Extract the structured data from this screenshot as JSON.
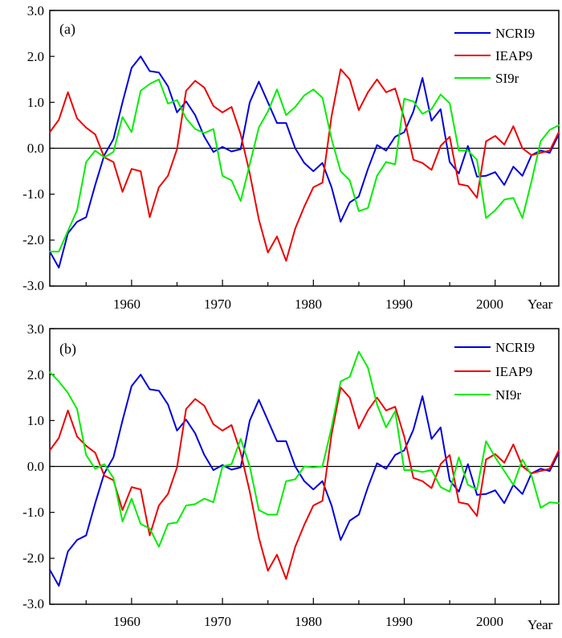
{
  "colors": {
    "NCRI9": "#0000dd",
    "IEAP9": "#ee0000",
    "SI9r": "#00ee00",
    "NI9r": "#00ee00",
    "axis": "#000000"
  },
  "chart_data": [
    {
      "type": "line",
      "panel_label": "(a)",
      "xlabel": "Year",
      "xlim": [
        1951,
        2007
      ],
      "ylim": [
        -3.0,
        3.0
      ],
      "x_ticks": [
        1960,
        1970,
        1980,
        1990,
        2000
      ],
      "x_tick_labels": [
        "1960",
        "1970",
        "1980",
        "1990",
        "2000"
      ],
      "y_ticks": [
        -3,
        -2,
        -1,
        0,
        1,
        2,
        3
      ],
      "y_tick_labels": [
        "-3.0",
        "-2.0",
        "-1.0",
        "0.0",
        "1.0",
        "2.0",
        "3.0"
      ],
      "zero_line": true,
      "legend_position": "top-right",
      "x_start": 1951,
      "series": [
        {
          "name": "NCRI9",
          "color": "#0000dd",
          "values": [
            -2.25,
            -2.6,
            -1.85,
            -1.6,
            -1.5,
            -0.8,
            -0.15,
            0.2,
            1.0,
            1.75,
            2.0,
            1.68,
            1.65,
            1.35,
            0.78,
            1.02,
            0.72,
            0.25,
            -0.08,
            0.03,
            -0.07,
            -0.02,
            1.0,
            1.45,
            1.0,
            0.55,
            0.55,
            0.0,
            -0.32,
            -0.5,
            -0.32,
            -0.85,
            -1.6,
            -1.18,
            -1.05,
            -0.45,
            0.07,
            -0.05,
            0.25,
            0.35,
            0.8,
            1.53,
            0.6,
            0.85,
            -0.3,
            -0.55,
            0.05,
            -0.62,
            -0.6,
            -0.52,
            -0.8,
            -0.4,
            -0.6,
            -0.15,
            -0.05,
            -0.1,
            0.3
          ]
        },
        {
          "name": "IEAP9",
          "color": "#ee0000",
          "values": [
            0.35,
            0.62,
            1.22,
            0.65,
            0.45,
            0.3,
            -0.2,
            -0.3,
            -0.95,
            -0.45,
            -0.5,
            -1.5,
            -0.85,
            -0.6,
            -0.02,
            1.25,
            1.47,
            1.32,
            0.92,
            0.78,
            0.9,
            0.3,
            -0.55,
            -1.55,
            -2.27,
            -1.92,
            -2.45,
            -1.75,
            -1.27,
            -0.85,
            -0.75,
            0.7,
            1.72,
            1.5,
            0.83,
            1.22,
            1.5,
            1.22,
            1.3,
            0.65,
            -0.25,
            -0.32,
            -0.47,
            0.05,
            0.25,
            -0.78,
            -0.82,
            -1.08,
            0.15,
            0.27,
            0.08,
            0.48,
            0.0,
            -0.15,
            -0.1,
            -0.05,
            0.35
          ]
        },
        {
          "name": "SI9r",
          "color": "#00ee00",
          "values": [
            -2.25,
            -2.25,
            -1.8,
            -1.35,
            -0.3,
            -0.05,
            -0.2,
            -0.08,
            0.68,
            0.35,
            1.25,
            1.4,
            1.5,
            0.97,
            1.05,
            0.65,
            0.42,
            0.33,
            0.42,
            -0.6,
            -0.7,
            -1.15,
            -0.35,
            0.45,
            0.8,
            1.28,
            0.72,
            0.9,
            1.15,
            1.28,
            1.1,
            0.2,
            -0.5,
            -0.7,
            -1.37,
            -1.3,
            -0.6,
            -0.3,
            -0.35,
            1.08,
            1.02,
            0.75,
            0.85,
            1.17,
            0.98,
            -0.05,
            -0.05,
            -0.25,
            -1.52,
            -1.35,
            -1.12,
            -1.08,
            -1.52,
            -0.72,
            0.15,
            0.4,
            0.5
          ]
        }
      ]
    },
    {
      "type": "line",
      "panel_label": "(b)",
      "xlabel": "Year",
      "xlim": [
        1951,
        2007
      ],
      "ylim": [
        -3.0,
        3.0
      ],
      "x_ticks": [
        1960,
        1970,
        1980,
        1990,
        2000
      ],
      "x_tick_labels": [
        "1960",
        "1970",
        "1980",
        "1990",
        "2000"
      ],
      "y_ticks": [
        -3,
        -2,
        -1,
        0,
        1,
        2,
        3
      ],
      "y_tick_labels": [
        "-3.0",
        "-2.0",
        "-1.0",
        "0.0",
        "1.0",
        "2.0",
        "3.0"
      ],
      "zero_line": true,
      "legend_position": "top-right",
      "x_start": 1951,
      "series": [
        {
          "name": "NCRI9",
          "color": "#0000dd",
          "values": [
            -2.25,
            -2.6,
            -1.85,
            -1.6,
            -1.5,
            -0.8,
            -0.15,
            0.2,
            1.0,
            1.75,
            2.0,
            1.68,
            1.65,
            1.35,
            0.78,
            1.02,
            0.72,
            0.25,
            -0.08,
            0.03,
            -0.07,
            -0.02,
            1.0,
            1.45,
            1.0,
            0.55,
            0.55,
            0.0,
            -0.32,
            -0.5,
            -0.32,
            -0.85,
            -1.6,
            -1.18,
            -1.05,
            -0.45,
            0.07,
            -0.05,
            0.25,
            0.35,
            0.8,
            1.53,
            0.6,
            0.85,
            -0.3,
            -0.55,
            0.05,
            -0.62,
            -0.6,
            -0.52,
            -0.8,
            -0.4,
            -0.6,
            -0.15,
            -0.05,
            -0.1,
            0.3
          ]
        },
        {
          "name": "IEAP9",
          "color": "#ee0000",
          "values": [
            0.35,
            0.62,
            1.22,
            0.65,
            0.45,
            0.3,
            -0.2,
            -0.3,
            -0.95,
            -0.45,
            -0.5,
            -1.5,
            -0.85,
            -0.6,
            -0.02,
            1.25,
            1.47,
            1.32,
            0.92,
            0.78,
            0.9,
            0.3,
            -0.55,
            -1.55,
            -2.27,
            -1.92,
            -2.45,
            -1.75,
            -1.27,
            -0.85,
            -0.75,
            0.7,
            1.72,
            1.5,
            0.83,
            1.22,
            1.5,
            1.22,
            1.3,
            0.65,
            -0.25,
            -0.32,
            -0.47,
            0.05,
            0.25,
            -0.78,
            -0.82,
            -1.08,
            0.15,
            0.27,
            0.08,
            0.48,
            0.0,
            -0.15,
            -0.1,
            -0.05,
            0.35
          ]
        },
        {
          "name": "NI9r",
          "color": "#00ee00",
          "values": [
            2.05,
            1.85,
            1.6,
            1.25,
            0.25,
            -0.05,
            0.05,
            -0.25,
            -1.2,
            -0.7,
            -1.25,
            -1.35,
            -1.75,
            -1.25,
            -1.22,
            -0.85,
            -0.82,
            -0.7,
            -0.78,
            0.0,
            0.05,
            0.6,
            0.0,
            -0.95,
            -1.05,
            -1.05,
            -0.32,
            -0.28,
            0.0,
            -0.02,
            0.0,
            0.85,
            1.85,
            1.95,
            2.5,
            2.15,
            1.35,
            0.85,
            1.2,
            -0.08,
            -0.08,
            -0.12,
            -0.08,
            -0.45,
            -0.55,
            0.2,
            -0.4,
            -0.5,
            0.55,
            0.2,
            -0.1,
            -0.4,
            0.15,
            -0.2,
            -0.9,
            -0.78,
            -0.8
          ]
        }
      ]
    }
  ]
}
